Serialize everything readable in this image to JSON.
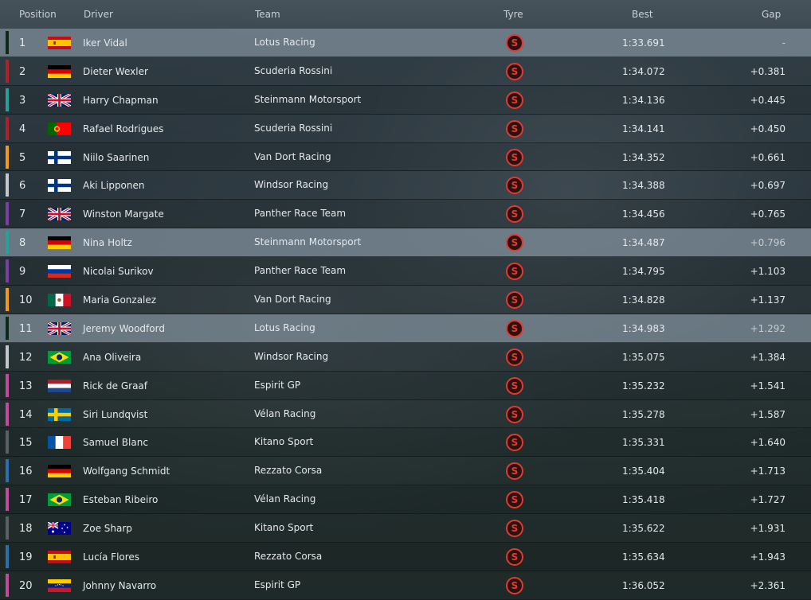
{
  "headers": {
    "position": "Position",
    "driver": "Driver",
    "team": "Team",
    "tyre": "Tyre",
    "best": "Best",
    "gap": "Gap"
  },
  "tyre_compound_letter": "S",
  "team_colors": {
    "Lotus Racing": "#0f2a1c",
    "Scuderia Rossini": "#b3202a",
    "Steinmann Motorsport": "#27a09a",
    "Van Dort Racing": "#f39a1e",
    "Windsor Racing": "#c4c7c9",
    "Panther Race Team": "#7a3fa0",
    "Espirit GP": "#c44a9e",
    "Vélan Racing": "#c44a9e",
    "Kitano Sport": "#5a5f63",
    "Rezzato Corsa": "#2b6fb0"
  },
  "highlighted_positions": [
    "1",
    "8",
    "11"
  ],
  "rows": [
    {
      "position": "1",
      "flag": "spain-flag",
      "driver": "Iker Vidal",
      "team": "Lotus Racing",
      "best": "1:33.691",
      "gap": "-"
    },
    {
      "position": "2",
      "flag": "germany-flag",
      "driver": "Dieter Wexler",
      "team": "Scuderia Rossini",
      "best": "1:34.072",
      "gap": "+0.381"
    },
    {
      "position": "3",
      "flag": "uk-flag",
      "driver": "Harry Chapman",
      "team": "Steinmann Motorsport",
      "best": "1:34.136",
      "gap": "+0.445"
    },
    {
      "position": "4",
      "flag": "portugal-flag",
      "driver": "Rafael Rodrigues",
      "team": "Scuderia Rossini",
      "best": "1:34.141",
      "gap": "+0.450"
    },
    {
      "position": "5",
      "flag": "finland-flag",
      "driver": "Niilo Saarinen",
      "team": "Van Dort Racing",
      "best": "1:34.352",
      "gap": "+0.661"
    },
    {
      "position": "6",
      "flag": "finland-flag",
      "driver": "Aki Lipponen",
      "team": "Windsor Racing",
      "best": "1:34.388",
      "gap": "+0.697"
    },
    {
      "position": "7",
      "flag": "uk-flag",
      "driver": "Winston Margate",
      "team": "Panther Race Team",
      "best": "1:34.456",
      "gap": "+0.765"
    },
    {
      "position": "8",
      "flag": "germany-flag",
      "driver": "Nina Holtz",
      "team": "Steinmann Motorsport",
      "best": "1:34.487",
      "gap": "+0.796"
    },
    {
      "position": "9",
      "flag": "russia-flag",
      "driver": "Nicolai Surikov",
      "team": "Panther Race Team",
      "best": "1:34.795",
      "gap": "+1.103"
    },
    {
      "position": "10",
      "flag": "mexico-flag",
      "driver": "Maria Gonzalez",
      "team": "Van Dort Racing",
      "best": "1:34.828",
      "gap": "+1.137"
    },
    {
      "position": "11",
      "flag": "uk-flag",
      "driver": "Jeremy Woodford",
      "team": "Lotus Racing",
      "best": "1:34.983",
      "gap": "+1.292"
    },
    {
      "position": "12",
      "flag": "brazil-flag",
      "driver": "Ana Oliveira",
      "team": "Windsor Racing",
      "best": "1:35.075",
      "gap": "+1.384"
    },
    {
      "position": "13",
      "flag": "netherlands-flag",
      "driver": "Rick de Graaf",
      "team": "Espirit GP",
      "best": "1:35.232",
      "gap": "+1.541"
    },
    {
      "position": "14",
      "flag": "sweden-flag",
      "driver": "Siri Lundqvist",
      "team": "Vélan Racing",
      "best": "1:35.278",
      "gap": "+1.587"
    },
    {
      "position": "15",
      "flag": "france-flag",
      "driver": "Samuel Blanc",
      "team": "Kitano Sport",
      "best": "1:35.331",
      "gap": "+1.640"
    },
    {
      "position": "16",
      "flag": "germany-flag",
      "driver": "Wolfgang Schmidt",
      "team": "Rezzato Corsa",
      "best": "1:35.404",
      "gap": "+1.713"
    },
    {
      "position": "17",
      "flag": "brazil-flag",
      "driver": "Esteban Ribeiro",
      "team": "Vélan Racing",
      "best": "1:35.418",
      "gap": "+1.727"
    },
    {
      "position": "18",
      "flag": "australia-flag",
      "driver": "Zoe Sharp",
      "team": "Kitano Sport",
      "best": "1:35.622",
      "gap": "+1.931"
    },
    {
      "position": "19",
      "flag": "spain-flag",
      "driver": "Lucía Flores",
      "team": "Rezzato Corsa",
      "best": "1:35.634",
      "gap": "+1.943"
    },
    {
      "position": "20",
      "flag": "venezuela-flag",
      "driver": "Johnny Navarro",
      "team": "Espirit GP",
      "best": "1:36.052",
      "gap": "+2.361"
    }
  ]
}
